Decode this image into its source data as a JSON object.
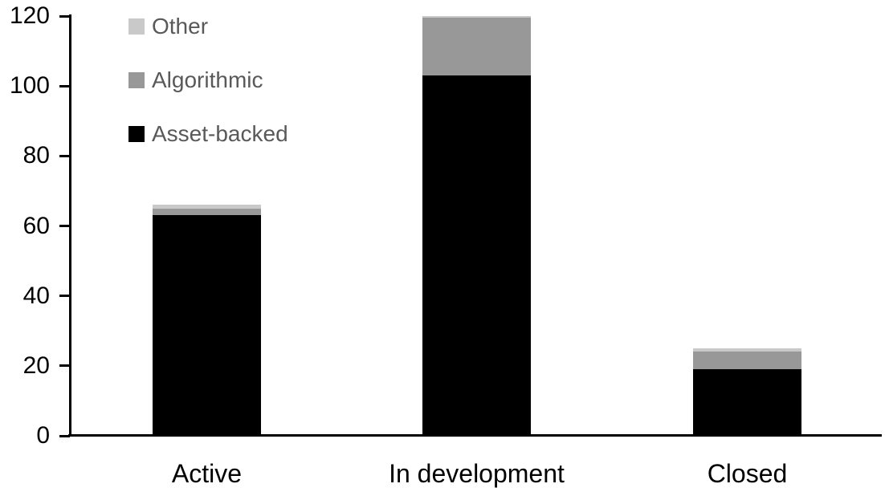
{
  "chart_data": {
    "type": "bar",
    "stacked": true,
    "categories": [
      "Active",
      "In development",
      "Closed"
    ],
    "series": [
      {
        "name": "Asset-backed",
        "color": "#000000",
        "values": [
          63,
          103,
          19
        ]
      },
      {
        "name": "Algorithmic",
        "color": "#989898",
        "values": [
          2,
          16.5,
          5
        ]
      },
      {
        "name": "Other",
        "color": "#c9c9c9",
        "values": [
          1,
          0.5,
          1
        ]
      }
    ],
    "totals": [
      66,
      120,
      25
    ],
    "ylim": [
      0,
      120
    ],
    "yticks": [
      0,
      20,
      40,
      60,
      80,
      100,
      120
    ],
    "grid": false,
    "legend_position": "top-left",
    "legend_order": [
      "Other",
      "Algorithmic",
      "Asset-backed"
    ]
  },
  "colors": {
    "background": "#ffffff",
    "axis": "#000000",
    "tick_label_text": "#000000",
    "category_label_text": "#000000",
    "legend_text": "#595959"
  }
}
